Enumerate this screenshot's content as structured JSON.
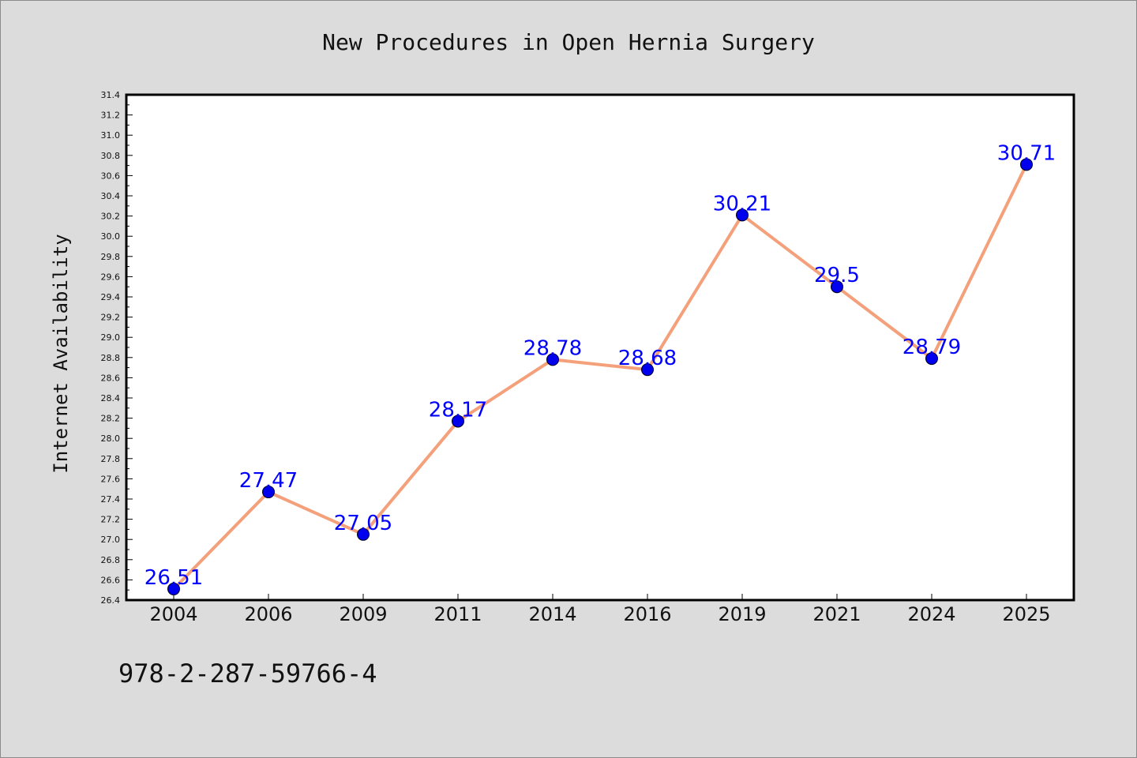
{
  "chart_data": {
    "type": "line",
    "title": "New Procedures in Open Hernia Surgery",
    "xlabel": "",
    "ylabel": "Internet Availability",
    "categories": [
      "2004",
      "2006",
      "2009",
      "2011",
      "2014",
      "2016",
      "2019",
      "2021",
      "2024",
      "2025"
    ],
    "series": [
      {
        "values": [
          26.51,
          27.47,
          27.05,
          28.17,
          28.78,
          28.68,
          30.21,
          29.5,
          28.79,
          30.71
        ],
        "data_labels": [
          "26.51",
          "27.47",
          "27.05",
          "28.17",
          "28.78",
          "28.68",
          "30.21",
          "29.5",
          "28.79",
          "30.71"
        ]
      }
    ],
    "ylim": [
      26.4,
      31.4
    ],
    "yticks": [
      "26.4",
      "26.6",
      "26.8",
      "27.0",
      "27.2",
      "27.4",
      "27.6",
      "27.8",
      "28.0",
      "28.2",
      "28.4",
      "28.6",
      "28.8",
      "29.0",
      "29.2",
      "29.4",
      "29.6",
      "29.8",
      "30.0",
      "30.2",
      "30.4",
      "30.6",
      "30.8",
      "31.0",
      "31.2",
      "31.4"
    ],
    "grid": false,
    "legend": "none",
    "colors": {
      "line": "#f4a07a",
      "marker": "#0000ee",
      "label": "#0000ff",
      "plot_bg": "#ffffff",
      "page_bg": "#dcdcdc"
    }
  },
  "footer_code": "978-2-287-59766-4"
}
